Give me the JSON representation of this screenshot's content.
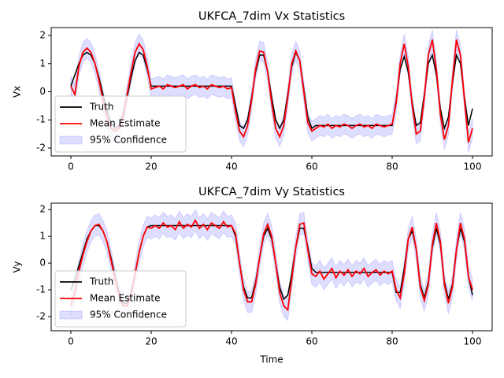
{
  "chart_data": [
    {
      "type": "line",
      "title": "UKFCA_7dim Vx Statistics",
      "y_label": "Vx",
      "x": [
        0,
        1,
        2,
        3,
        4,
        5,
        6,
        7,
        8,
        9,
        10,
        11,
        12,
        13,
        14,
        15,
        16,
        17,
        18,
        19,
        20,
        21,
        22,
        23,
        24,
        25,
        26,
        27,
        28,
        29,
        30,
        31,
        32,
        33,
        34,
        35,
        36,
        37,
        38,
        39,
        40,
        41,
        42,
        43,
        44,
        45,
        46,
        47,
        48,
        49,
        50,
        51,
        52,
        53,
        54,
        55,
        56,
        57,
        58,
        59,
        60,
        61,
        62,
        63,
        64,
        65,
        66,
        67,
        68,
        69,
        70,
        71,
        72,
        73,
        74,
        75,
        76,
        77,
        78,
        79,
        80,
        81,
        82,
        83,
        84,
        85,
        86,
        87,
        88,
        89,
        90,
        91,
        92,
        93,
        94,
        95,
        96,
        97,
        98,
        99,
        100
      ],
      "series": [
        {
          "name": "Truth",
          "color": "#000000",
          "values": [
            0.2,
            0.6,
            1.0,
            1.3,
            1.4,
            1.3,
            1.0,
            0.5,
            -0.1,
            -0.7,
            -1.1,
            -1.3,
            -1.2,
            -0.8,
            -0.2,
            0.5,
            1.1,
            1.4,
            1.3,
            0.8,
            0.2,
            0.2,
            0.2,
            0.2,
            0.2,
            0.2,
            0.2,
            0.2,
            0.2,
            0.2,
            0.2,
            0.2,
            0.2,
            0.2,
            0.2,
            0.2,
            0.2,
            0.2,
            0.2,
            0.2,
            0.2,
            -0.5,
            -1.2,
            -1.3,
            -1.0,
            -0.2,
            0.7,
            1.3,
            1.3,
            0.7,
            -0.2,
            -1.0,
            -1.3,
            -1.0,
            -0.1,
            0.9,
            1.4,
            1.1,
            0.1,
            -0.9,
            -1.3,
            -1.2,
            -1.2,
            -1.2,
            -1.2,
            -1.2,
            -1.2,
            -1.2,
            -1.2,
            -1.2,
            -1.2,
            -1.2,
            -1.2,
            -1.2,
            -1.2,
            -1.2,
            -1.2,
            -1.2,
            -1.2,
            -1.2,
            -1.2,
            -0.3,
            0.8,
            1.25,
            0.7,
            -0.4,
            -1.2,
            -1.1,
            -0.1,
            1.0,
            1.3,
            0.6,
            -0.6,
            -1.3,
            -0.9,
            0.3,
            1.3,
            1.0,
            -0.2,
            -1.2,
            -0.6
          ]
        },
        {
          "name": "Mean Estimate",
          "color": "#ff0000",
          "values": [
            0.2,
            -0.1,
            0.9,
            1.4,
            1.55,
            1.4,
            1.0,
            0.4,
            -0.3,
            -0.9,
            -1.3,
            -1.4,
            -1.3,
            -0.9,
            -0.1,
            0.7,
            1.4,
            1.7,
            1.5,
            0.9,
            0.1,
            0.15,
            0.2,
            0.1,
            0.25,
            0.2,
            0.15,
            0.2,
            0.25,
            0.1,
            0.2,
            0.25,
            0.15,
            0.2,
            0.1,
            0.25,
            0.2,
            0.15,
            0.2,
            0.1,
            0.15,
            -0.7,
            -1.4,
            -1.6,
            -1.2,
            -0.3,
            0.8,
            1.45,
            1.4,
            0.7,
            -0.4,
            -1.3,
            -1.6,
            -1.2,
            -0.2,
            1.0,
            1.45,
            1.1,
            0.0,
            -1.1,
            -1.4,
            -1.3,
            -1.2,
            -1.25,
            -1.15,
            -1.3,
            -1.2,
            -1.25,
            -1.15,
            -1.2,
            -1.3,
            -1.2,
            -1.15,
            -1.25,
            -1.2,
            -1.3,
            -1.15,
            -1.2,
            -1.25,
            -1.2,
            -1.15,
            -0.4,
            1.0,
            1.7,
            0.9,
            -0.5,
            -1.5,
            -1.4,
            -0.2,
            1.3,
            1.85,
            0.8,
            -0.8,
            -1.7,
            -1.2,
            0.4,
            1.85,
            1.3,
            -0.3,
            -1.8,
            -1.3
          ]
        }
      ],
      "band": {
        "name": "95% Confidence",
        "color": "#0000ff",
        "lower": [
          -0.15,
          -0.45,
          0.55,
          1.05,
          1.2,
          1.05,
          0.65,
          0.05,
          -0.65,
          -1.25,
          -1.65,
          -1.75,
          -1.65,
          -1.25,
          -0.45,
          0.35,
          1.05,
          1.35,
          1.15,
          0.55,
          -0.25,
          -0.2,
          -0.15,
          -0.25,
          -0.1,
          -0.15,
          -0.2,
          -0.15,
          -0.1,
          -0.25,
          -0.15,
          -0.1,
          -0.2,
          -0.15,
          -0.25,
          -0.1,
          -0.15,
          -0.2,
          -0.15,
          -0.25,
          -0.2,
          -1.05,
          -1.75,
          -1.95,
          -1.55,
          -0.65,
          0.45,
          1.1,
          1.05,
          0.35,
          -0.75,
          -1.65,
          -1.95,
          -1.55,
          -0.55,
          0.65,
          1.1,
          0.75,
          -0.35,
          -1.45,
          -1.75,
          -1.65,
          -1.55,
          -1.6,
          -1.5,
          -1.65,
          -1.55,
          -1.6,
          -1.5,
          -1.55,
          -1.65,
          -1.55,
          -1.5,
          -1.6,
          -1.55,
          -1.65,
          -1.5,
          -1.55,
          -1.6,
          -1.55,
          -1.5,
          -0.75,
          0.65,
          1.35,
          0.55,
          -0.85,
          -1.85,
          -1.75,
          -0.55,
          0.95,
          1.5,
          0.45,
          -1.15,
          -2.05,
          -1.55,
          0.05,
          1.5,
          0.95,
          -0.65,
          -2.15,
          -1.65
        ],
        "upper": [
          0.55,
          0.25,
          1.25,
          1.75,
          1.9,
          1.75,
          1.35,
          0.75,
          0.05,
          -0.55,
          -0.95,
          -1.05,
          -0.95,
          -0.55,
          0.25,
          1.05,
          1.75,
          2.05,
          1.85,
          1.25,
          0.45,
          0.5,
          0.55,
          0.45,
          0.6,
          0.55,
          0.5,
          0.55,
          0.6,
          0.45,
          0.55,
          0.6,
          0.5,
          0.55,
          0.45,
          0.6,
          0.55,
          0.5,
          0.55,
          0.45,
          0.5,
          -0.35,
          -1.05,
          -1.25,
          -0.85,
          0.05,
          1.15,
          1.8,
          1.75,
          1.05,
          -0.05,
          -0.95,
          -1.25,
          -0.85,
          0.15,
          1.35,
          1.8,
          1.45,
          0.35,
          -0.75,
          -1.05,
          -0.95,
          -0.85,
          -0.9,
          -0.8,
          -0.95,
          -0.85,
          -0.9,
          -0.8,
          -0.85,
          -0.95,
          -0.85,
          -0.8,
          -0.9,
          -0.85,
          -0.95,
          -0.8,
          -0.85,
          -0.9,
          -0.85,
          -0.8,
          -0.05,
          1.35,
          2.05,
          1.25,
          -0.15,
          -1.15,
          -1.05,
          0.15,
          1.65,
          2.2,
          1.15,
          -0.45,
          -1.35,
          -0.85,
          0.75,
          2.2,
          1.65,
          0.05,
          -1.45,
          -0.95
        ]
      },
      "xlim": [
        -4.9,
        104.9
      ],
      "xticks": [
        0,
        20,
        40,
        60,
        80,
        100
      ],
      "ylim": [
        -2.28,
        2.28
      ],
      "yticks": [
        -2,
        -1,
        0,
        1,
        2
      ],
      "legend": "lower left"
    },
    {
      "type": "line",
      "title": "UKFCA_7dim Vy Statistics",
      "x_label": "Time",
      "y_label": "Vy",
      "x": [
        0,
        1,
        2,
        3,
        4,
        5,
        6,
        7,
        8,
        9,
        10,
        11,
        12,
        13,
        14,
        15,
        16,
        17,
        18,
        19,
        20,
        21,
        22,
        23,
        24,
        25,
        26,
        27,
        28,
        29,
        30,
        31,
        32,
        33,
        34,
        35,
        36,
        37,
        38,
        39,
        40,
        41,
        42,
        43,
        44,
        45,
        46,
        47,
        48,
        49,
        50,
        51,
        52,
        53,
        54,
        55,
        56,
        57,
        58,
        59,
        60,
        61,
        62,
        63,
        64,
        65,
        66,
        67,
        68,
        69,
        70,
        71,
        72,
        73,
        74,
        75,
        76,
        77,
        78,
        79,
        80,
        81,
        82,
        83,
        84,
        85,
        86,
        87,
        88,
        89,
        90,
        91,
        92,
        93,
        94,
        95,
        96,
        97,
        98,
        99,
        100
      ],
      "series": [
        {
          "name": "Truth",
          "color": "#000000",
          "values": [
            -1.0,
            -0.6,
            -0.1,
            0.4,
            0.9,
            1.2,
            1.4,
            1.4,
            1.2,
            0.8,
            0.2,
            -0.5,
            -1.1,
            -1.5,
            -1.5,
            -1.1,
            -0.4,
            0.4,
            1.0,
            1.35,
            1.4,
            1.4,
            1.4,
            1.4,
            1.4,
            1.4,
            1.4,
            1.4,
            1.4,
            1.4,
            1.4,
            1.4,
            1.4,
            1.4,
            1.4,
            1.4,
            1.4,
            1.4,
            1.4,
            1.4,
            1.4,
            1.0,
            0.0,
            -0.9,
            -1.3,
            -1.3,
            -0.7,
            0.2,
            1.0,
            1.3,
            0.9,
            0.0,
            -0.9,
            -1.35,
            -1.2,
            -0.4,
            0.6,
            1.3,
            1.3,
            0.6,
            -0.2,
            -0.35,
            -0.35,
            -0.35,
            -0.35,
            -0.35,
            -0.35,
            -0.35,
            -0.35,
            -0.35,
            -0.35,
            -0.35,
            -0.35,
            -0.35,
            -0.35,
            -0.35,
            -0.35,
            -0.35,
            -0.35,
            -0.35,
            -0.35,
            -1.1,
            -1.1,
            -0.2,
            0.9,
            1.2,
            0.5,
            -0.8,
            -1.3,
            -0.7,
            0.6,
            1.3,
            0.7,
            -0.7,
            -1.35,
            -0.8,
            0.5,
            1.3,
            0.8,
            -0.5,
            -1.2
          ]
        },
        {
          "name": "Mean Estimate",
          "color": "#ff0000",
          "values": [
            -1.6,
            -1.1,
            -0.3,
            0.3,
            0.8,
            1.2,
            1.4,
            1.45,
            1.2,
            0.8,
            0.1,
            -0.6,
            -1.2,
            -1.6,
            -1.6,
            -1.2,
            -0.4,
            0.4,
            1.0,
            1.35,
            1.3,
            1.4,
            1.3,
            1.5,
            1.35,
            1.4,
            1.25,
            1.55,
            1.3,
            1.45,
            1.35,
            1.6,
            1.3,
            1.45,
            1.25,
            1.5,
            1.4,
            1.3,
            1.55,
            1.35,
            1.4,
            1.1,
            0.0,
            -1.0,
            -1.45,
            -1.45,
            -0.8,
            0.2,
            1.1,
            1.45,
            1.0,
            0.0,
            -1.1,
            -1.6,
            -1.75,
            -0.6,
            0.6,
            1.45,
            1.5,
            0.5,
            -0.4,
            -0.5,
            -0.3,
            -0.6,
            -0.4,
            -0.2,
            -0.55,
            -0.3,
            -0.45,
            -0.25,
            -0.5,
            -0.3,
            -0.4,
            -0.2,
            -0.5,
            -0.35,
            -0.25,
            -0.45,
            -0.3,
            -0.4,
            -0.3,
            -1.0,
            -1.3,
            -0.4,
            0.9,
            1.35,
            0.5,
            -0.9,
            -1.4,
            -0.8,
            0.7,
            1.5,
            0.8,
            -0.8,
            -1.5,
            -0.9,
            0.5,
            1.5,
            0.9,
            -0.5,
            -1.0
          ]
        }
      ],
      "band": {
        "name": "95% Confidence",
        "color": "#0000ff",
        "lower": [
          -2.0,
          -1.5,
          -0.7,
          -0.1,
          0.4,
          0.8,
          1.0,
          1.05,
          0.8,
          0.4,
          -0.3,
          -1.0,
          -1.6,
          -2.0,
          -2.0,
          -1.6,
          -0.8,
          0.0,
          0.6,
          0.95,
          0.9,
          1.0,
          0.9,
          1.1,
          0.95,
          1.0,
          0.85,
          1.15,
          0.9,
          1.05,
          0.95,
          1.2,
          0.9,
          1.05,
          0.85,
          1.1,
          1.0,
          0.9,
          1.15,
          0.95,
          1.0,
          0.7,
          -0.4,
          -1.4,
          -1.85,
          -1.85,
          -1.2,
          -0.2,
          0.7,
          1.05,
          0.6,
          -0.4,
          -1.5,
          -2.0,
          -2.15,
          -1.0,
          0.2,
          1.05,
          1.1,
          0.1,
          -0.8,
          -0.9,
          -0.7,
          -1.0,
          -0.8,
          -0.6,
          -0.95,
          -0.7,
          -0.85,
          -0.65,
          -0.9,
          -0.7,
          -0.8,
          -0.6,
          -0.9,
          -0.75,
          -0.65,
          -0.85,
          -0.7,
          -0.8,
          -0.7,
          -1.4,
          -1.7,
          -0.8,
          0.5,
          0.95,
          0.1,
          -1.3,
          -1.8,
          -1.2,
          0.3,
          1.1,
          0.4,
          -1.2,
          -1.9,
          -1.3,
          0.1,
          1.1,
          0.5,
          -0.9,
          -1.4
        ],
        "upper": [
          -1.2,
          -0.7,
          0.1,
          0.7,
          1.2,
          1.6,
          1.8,
          1.85,
          1.6,
          1.2,
          0.5,
          -0.2,
          -0.8,
          -1.2,
          -1.2,
          -0.8,
          0.0,
          0.8,
          1.4,
          1.75,
          1.7,
          1.8,
          1.7,
          1.9,
          1.75,
          1.8,
          1.65,
          1.95,
          1.7,
          1.85,
          1.75,
          2.0,
          1.7,
          1.85,
          1.65,
          1.9,
          1.8,
          1.7,
          1.95,
          1.75,
          1.8,
          1.5,
          0.4,
          -0.6,
          -1.05,
          -1.05,
          -0.4,
          0.6,
          1.5,
          1.85,
          1.4,
          0.4,
          -0.7,
          -1.2,
          -1.35,
          -0.2,
          1.0,
          1.85,
          1.9,
          0.9,
          0.0,
          -0.1,
          0.1,
          -0.2,
          0.0,
          0.2,
          -0.15,
          0.1,
          -0.05,
          0.15,
          -0.1,
          0.1,
          0.0,
          0.2,
          -0.1,
          0.05,
          0.15,
          -0.05,
          0.1,
          0.0,
          0.1,
          -0.6,
          -0.9,
          0.0,
          1.3,
          1.75,
          0.9,
          -0.5,
          -1.0,
          -0.4,
          1.1,
          1.9,
          1.2,
          -0.4,
          -1.1,
          -0.5,
          0.9,
          1.9,
          1.3,
          -0.1,
          -0.6
        ]
      },
      "xlim": [
        -4.9,
        104.9
      ],
      "xticks": [
        0,
        20,
        40,
        60,
        80,
        100
      ],
      "ylim": [
        -2.53,
        2.24
      ],
      "yticks": [
        -2,
        -1,
        0,
        1,
        2
      ],
      "legend": "lower left"
    }
  ]
}
